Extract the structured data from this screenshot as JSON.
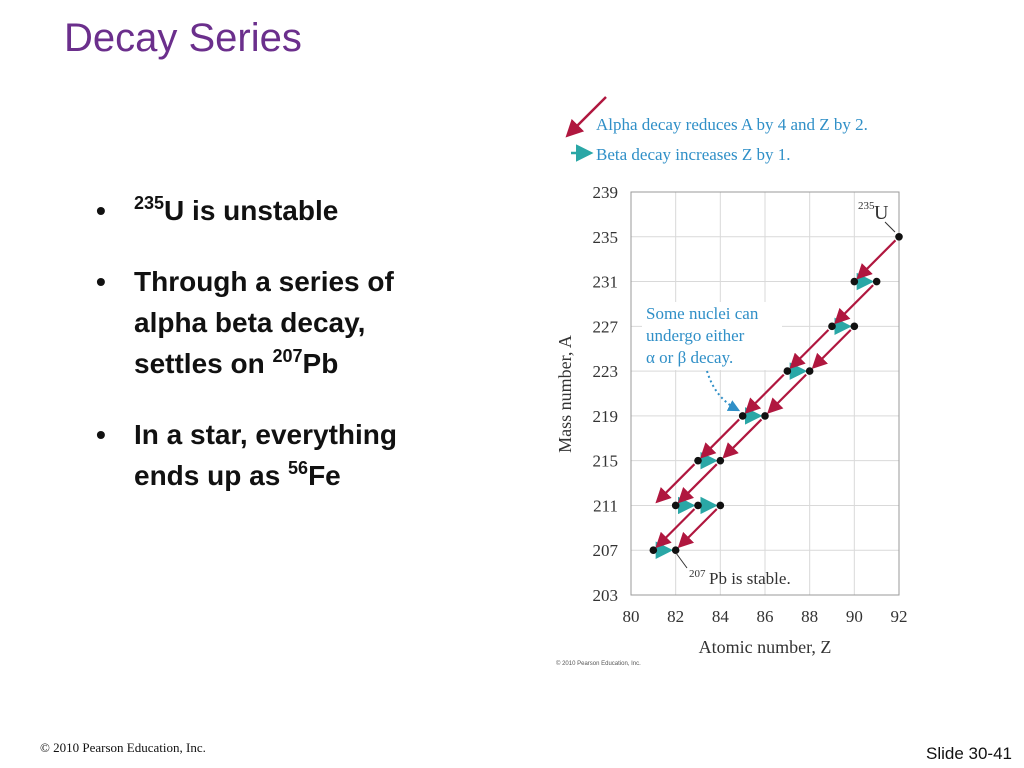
{
  "slide": {
    "title": "Decay Series",
    "bullets": [
      {
        "pre_sup": "235",
        "text": "U is unstable"
      },
      {
        "text": "Through a series of alpha beta decay, settles on ",
        "sup": "207",
        "post": "Pb"
      },
      {
        "text": "In a star, everything ends up as ",
        "sup": "56",
        "post": "Fe"
      }
    ],
    "bullet_char": "•",
    "footer_left": "© 2010 Pearson Education, Inc.",
    "footer_right": "Slide 30-41"
  },
  "diagram": {
    "legend_alpha": "Alpha decay reduces A by 4 and Z by 2.",
    "legend_beta": "Beta decay increases Z by 1.",
    "u_label_sup": "235",
    "u_label": "U",
    "pb_label_sup": "207",
    "pb_label": "Pb is stable.",
    "callout_lines": [
      "Some nuclei can",
      "undergo either",
      "α or β decay."
    ],
    "credit": "© 2010 Pearson Education, Inc.",
    "colors": {
      "alpha": "#b0173f",
      "beta": "#2aa7a6",
      "callout": "#2f8fc7",
      "dot": "#111111",
      "grid": "#d9d9d9",
      "title": "#6b2f8c"
    }
  },
  "chart_data": {
    "type": "scatter",
    "xlabel": "Atomic number, Z",
    "ylabel": "Mass number, A",
    "xlim": [
      80,
      92
    ],
    "ylim": [
      203,
      239
    ],
    "x_ticks": [
      80,
      82,
      84,
      86,
      88,
      90,
      92
    ],
    "y_ticks": [
      203,
      207,
      211,
      215,
      219,
      223,
      227,
      231,
      235,
      239
    ],
    "nuclei": [
      {
        "z": 92,
        "a": 235
      },
      {
        "z": 90,
        "a": 231
      },
      {
        "z": 91,
        "a": 231
      },
      {
        "z": 89,
        "a": 227
      },
      {
        "z": 90,
        "a": 227
      },
      {
        "z": 87,
        "a": 223
      },
      {
        "z": 88,
        "a": 223
      },
      {
        "z": 85,
        "a": 219
      },
      {
        "z": 86,
        "a": 219
      },
      {
        "z": 83,
        "a": 215
      },
      {
        "z": 84,
        "a": 215
      },
      {
        "z": 82,
        "a": 211
      },
      {
        "z": 83,
        "a": 211
      },
      {
        "z": 84,
        "a": 211
      },
      {
        "z": 81,
        "a": 207
      },
      {
        "z": 82,
        "a": 207
      }
    ],
    "alpha_decays": [
      {
        "from": [
          92,
          235
        ],
        "to": [
          90,
          231
        ]
      },
      {
        "from": [
          91,
          231
        ],
        "to": [
          89,
          227
        ]
      },
      {
        "from": [
          90,
          227
        ],
        "to": [
          88,
          223
        ]
      },
      {
        "from": [
          89,
          227
        ],
        "to": [
          87,
          223
        ]
      },
      {
        "from": [
          88,
          223
        ],
        "to": [
          86,
          219
        ]
      },
      {
        "from": [
          87,
          223
        ],
        "to": [
          85,
          219
        ]
      },
      {
        "from": [
          86,
          219
        ],
        "to": [
          84,
          215
        ]
      },
      {
        "from": [
          85,
          219
        ],
        "to": [
          83,
          215
        ]
      },
      {
        "from": [
          84,
          215
        ],
        "to": [
          82,
          211
        ]
      },
      {
        "from": [
          83,
          215
        ],
        "to": [
          81,
          211
        ]
      },
      {
        "from": [
          84,
          211
        ],
        "to": [
          82,
          207
        ]
      },
      {
        "from": [
          83,
          211
        ],
        "to": [
          81,
          207
        ]
      }
    ],
    "beta_decays": [
      {
        "from": [
          90,
          231
        ],
        "to": [
          91,
          231
        ]
      },
      {
        "from": [
          89,
          227
        ],
        "to": [
          90,
          227
        ]
      },
      {
        "from": [
          87,
          223
        ],
        "to": [
          88,
          223
        ]
      },
      {
        "from": [
          85,
          219
        ],
        "to": [
          86,
          219
        ]
      },
      {
        "from": [
          83,
          215
        ],
        "to": [
          84,
          215
        ]
      },
      {
        "from": [
          82,
          211
        ],
        "to": [
          83,
          211
        ]
      },
      {
        "from": [
          83,
          211
        ],
        "to": [
          84,
          211
        ]
      },
      {
        "from": [
          81,
          207
        ],
        "to": [
          82,
          207
        ]
      }
    ]
  }
}
